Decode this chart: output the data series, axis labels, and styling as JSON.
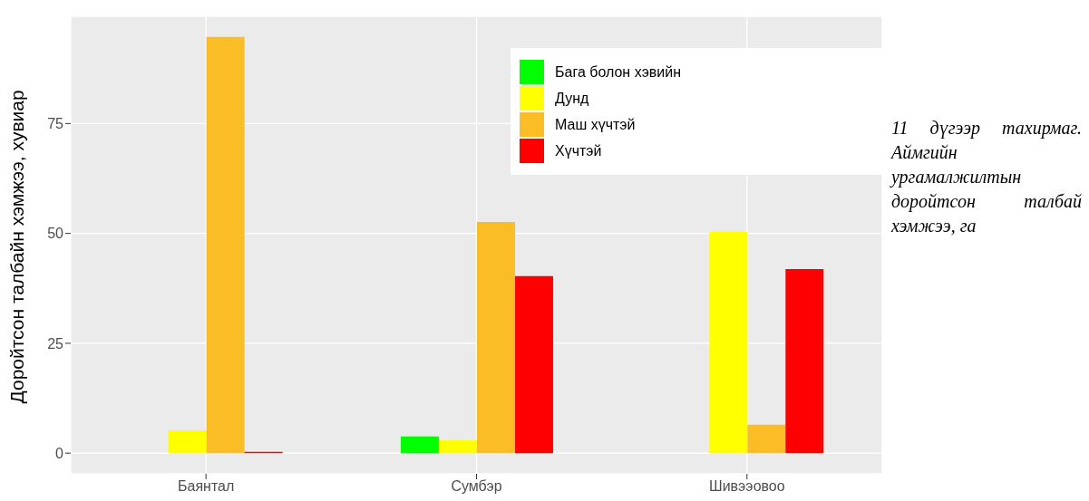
{
  "chart_data": {
    "type": "bar",
    "categories": [
      "Баянтал",
      "Сумбэр",
      "Шивээовоо"
    ],
    "ylabel": "Доройтсон талбайн хэмжээ, хувиар",
    "series": [
      {
        "name": "Бага болон хэвийн",
        "color": "#00ff00",
        "values": [
          null,
          3.8,
          null
        ]
      },
      {
        "name": "Дунд",
        "color": "#ffff00",
        "values": [
          5.2,
          3.0,
          50.4
        ]
      },
      {
        "name": "Маш хүчтэй",
        "color": "#fbbd25",
        "values": [
          94.7,
          52.6,
          6.5
        ]
      },
      {
        "name": "Хүчтэй",
        "color": "#ff0000",
        "values": [
          0.3,
          40.3,
          41.9
        ]
      }
    ],
    "ylim": [
      -4.7,
      99.4
    ],
    "yticks": [
      0,
      25,
      50,
      75
    ],
    "grid": true,
    "legend": "top right",
    "annotations": [
      "11 дүгээр тахирмаг. Аймгийн ургамалжилтын доройтсон талбай хэмжээ, га"
    ]
  }
}
